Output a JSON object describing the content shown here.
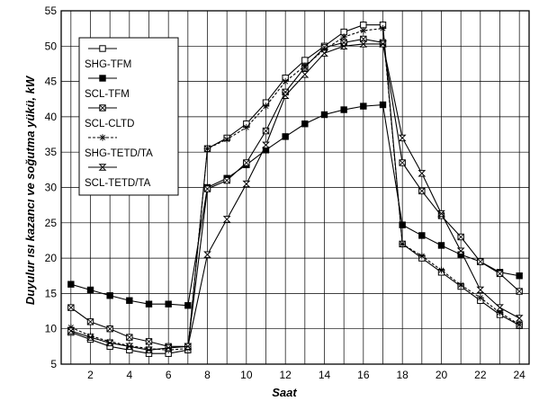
{
  "chart_data": {
    "type": "line",
    "title": "",
    "xlabel": "Saat",
    "ylabel": "Duyulur ısı kazancı ve soğutma yükü, kW",
    "x": [
      1,
      2,
      3,
      4,
      5,
      6,
      7,
      8,
      9,
      10,
      11,
      12,
      13,
      14,
      15,
      16,
      17,
      18,
      19,
      20,
      21,
      22,
      23,
      24
    ],
    "xlim": [
      0.5,
      24.5
    ],
    "ylim": [
      5,
      55
    ],
    "xticks": [
      "2",
      "4",
      "6",
      "8",
      "10",
      "12",
      "14",
      "16",
      "18",
      "20",
      "22",
      "24"
    ],
    "yticks": [
      "5",
      "10",
      "15",
      "20",
      "25",
      "30",
      "35",
      "40",
      "45",
      "50",
      "55"
    ],
    "grid": true,
    "legend_position": "top-left",
    "series": [
      {
        "name": "SHG-TFM",
        "marker": "square-open",
        "dash": "none",
        "values": [
          9.5,
          8.5,
          7.5,
          7.0,
          6.5,
          6.5,
          7.0,
          35.5,
          37.0,
          39.0,
          42.0,
          45.5,
          48.0,
          50.0,
          52.0,
          53.0,
          53.0,
          22.0,
          20.0,
          18.0,
          16.0,
          14.0,
          12.0,
          10.5
        ]
      },
      {
        "name": "SCL-TFM",
        "marker": "square-filled",
        "dash": "none",
        "values": [
          16.3,
          15.5,
          14.7,
          14.0,
          13.5,
          13.5,
          13.3,
          30.0,
          31.3,
          33.2,
          35.3,
          37.2,
          39.0,
          40.3,
          41.0,
          41.5,
          41.7,
          24.7,
          23.2,
          21.8,
          20.5,
          19.5,
          18.0,
          17.5
        ]
      },
      {
        "name": "SCL-CLTD",
        "marker": "square-x",
        "dash": "none",
        "values": [
          13.0,
          11.0,
          10.0,
          8.8,
          8.2,
          7.5,
          7.5,
          29.8,
          31.0,
          33.5,
          38.0,
          43.5,
          47.0,
          49.8,
          50.5,
          51.0,
          50.5,
          33.5,
          29.5,
          26.0,
          23.0,
          19.5,
          17.8,
          15.3
        ]
      },
      {
        "name": "SHG-TETD/TA",
        "marker": "asterisk",
        "dash": "3 2",
        "values": [
          10.2,
          9.0,
          8.2,
          7.6,
          7.2,
          7.0,
          7.2,
          35.5,
          36.8,
          38.5,
          41.5,
          45.0,
          47.2,
          49.5,
          51.3,
          52.2,
          52.5,
          22.0,
          20.3,
          18.3,
          16.2,
          14.4,
          12.3,
          10.6
        ]
      },
      {
        "name": "SCL-TETD/TA",
        "marker": "hourglass",
        "dash": "none",
        "values": [
          9.7,
          8.8,
          8.0,
          7.5,
          7.0,
          7.3,
          7.5,
          20.5,
          25.5,
          30.5,
          36.0,
          43.0,
          46.0,
          49.0,
          50.0,
          50.3,
          50.3,
          37.0,
          32.0,
          26.3,
          21.0,
          15.5,
          13.0,
          11.5
        ]
      }
    ]
  }
}
